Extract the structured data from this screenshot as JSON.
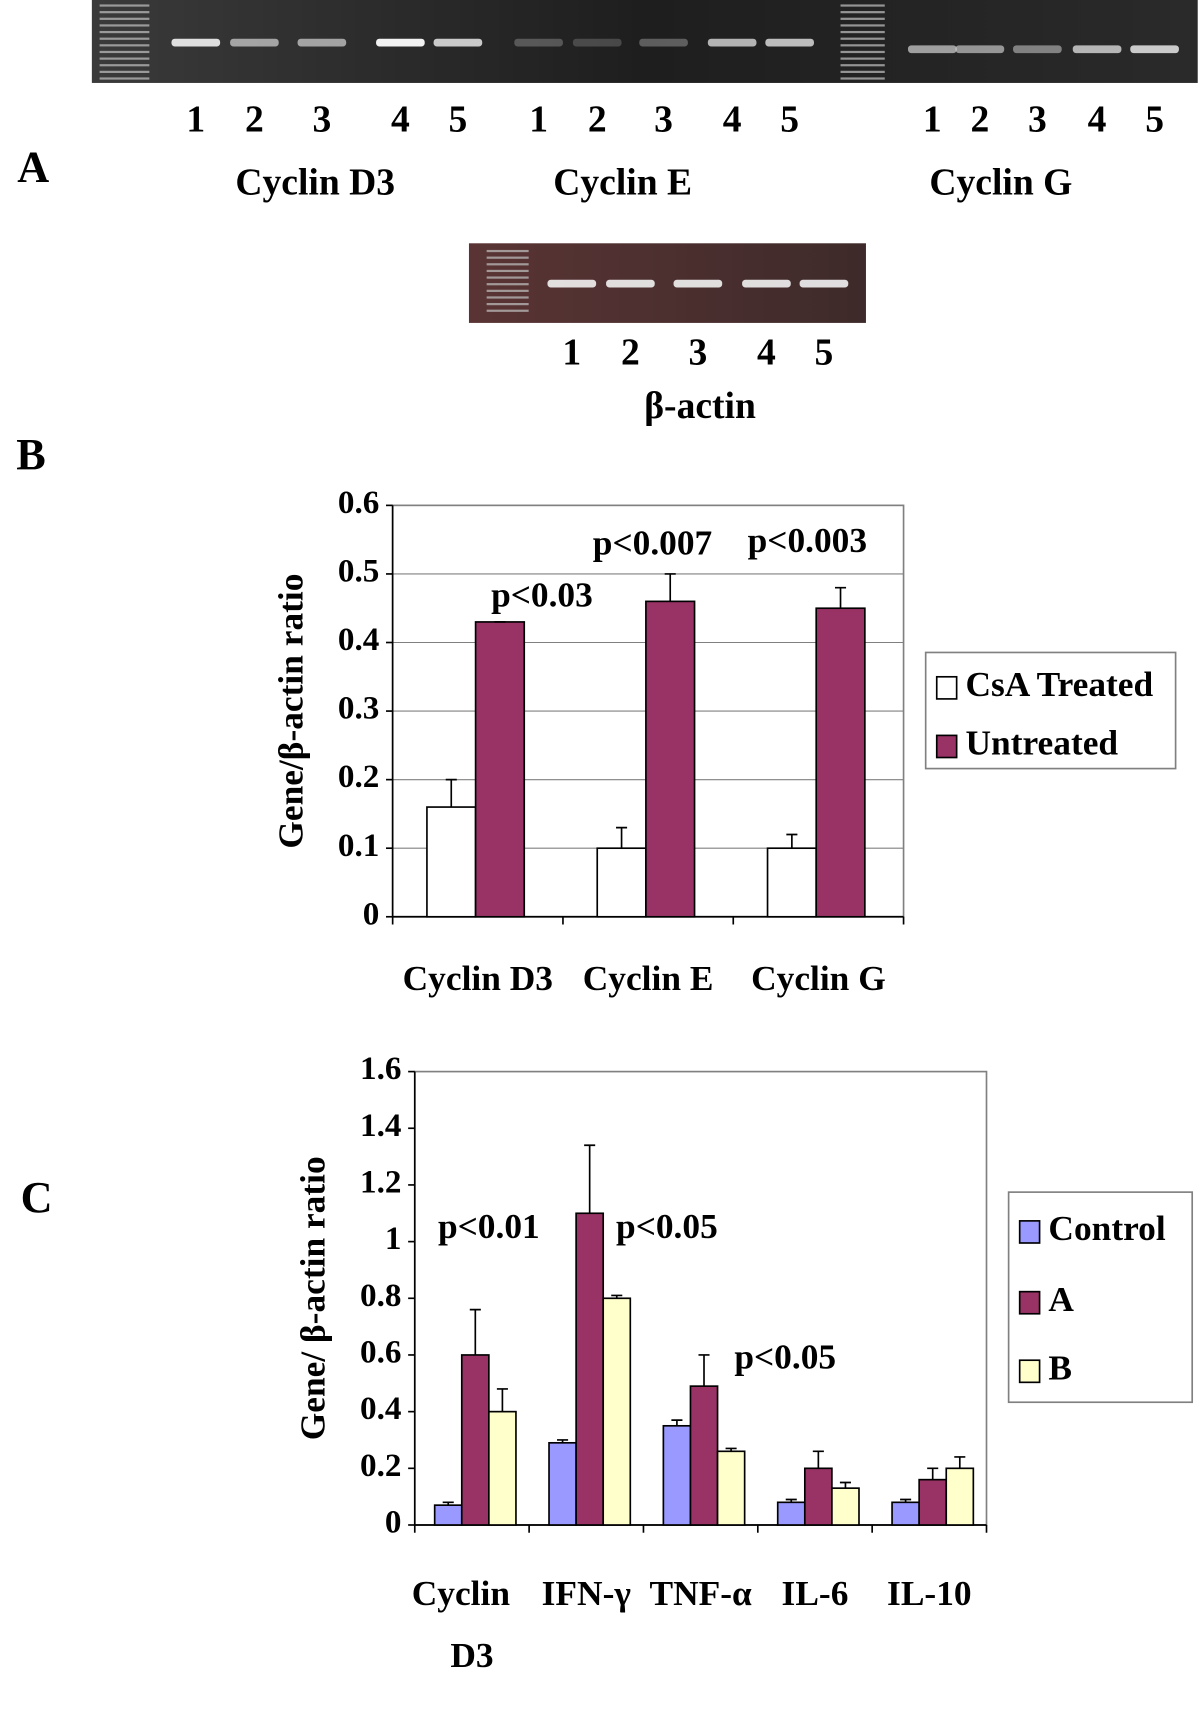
{
  "panels": {
    "letters": [
      "A",
      "B",
      "C"
    ],
    "gels": [
      {
        "label": "Cyclin D3",
        "lanes": [
          "1",
          "2",
          "3",
          "4",
          "5"
        ]
      },
      {
        "label": "Cyclin E",
        "lanes": [
          "1",
          "2",
          "3",
          "4",
          "5"
        ]
      },
      {
        "label": "Cyclin G",
        "lanes": [
          "1",
          "2",
          "3",
          "4",
          "5"
        ]
      },
      {
        "label": "β-actin",
        "lanes": [
          "1",
          "2",
          "3",
          "4",
          "5"
        ]
      }
    ]
  },
  "chart_data": [
    {
      "type": "bar",
      "y_label": "Gene/β-actin ratio",
      "categories": [
        "Cyclin D3",
        "Cyclin E",
        "Cyclin G"
      ],
      "series": [
        {
          "name": "CsA Treated",
          "color": "#ffffff",
          "values": [
            0.16,
            0.1,
            0.1
          ],
          "errors": [
            0.04,
            0.03,
            0.02
          ]
        },
        {
          "name": "Untreated",
          "color": "#993366",
          "values": [
            0.43,
            0.46,
            0.45
          ],
          "errors": [
            0,
            0.04,
            0.03
          ]
        }
      ],
      "annotations": [
        "p<0.03",
        "p<0.007",
        "p<0.003"
      ],
      "ylim": [
        0,
        0.6
      ],
      "yticks": [
        0,
        0.1,
        0.2,
        0.3,
        0.4,
        0.5,
        0.6
      ],
      "grid": true,
      "legend": "right"
    },
    {
      "type": "bar",
      "y_label": "Gene/ β-actin ratio",
      "categories": [
        "Cyclin D3",
        "IFN-γ",
        "TNF-α",
        "IL-6",
        "IL-10"
      ],
      "series": [
        {
          "name": "Control",
          "color": "#9999ff",
          "values": [
            0.07,
            0.29,
            0.35,
            0.08,
            0.08
          ],
          "errors": [
            0.01,
            0.01,
            0.02,
            0.01,
            0.01
          ]
        },
        {
          "name": "A",
          "color": "#993366",
          "values": [
            0.6,
            1.1,
            0.49,
            0.2,
            0.16
          ],
          "errors": [
            0.16,
            0.24,
            0.11,
            0.06,
            0.04
          ]
        },
        {
          "name": "B",
          "color": "#ffffcc",
          "values": [
            0.4,
            0.8,
            0.26,
            0.13,
            0.2
          ],
          "errors": [
            0.08,
            0.01,
            0.01,
            0.02,
            0.04
          ]
        }
      ],
      "annotations": [
        "p<0.01",
        "p<0.05",
        "p<0.05"
      ],
      "ylim": [
        0,
        1.6
      ],
      "yticks": [
        0,
        0.2,
        0.4,
        0.6,
        0.8,
        1,
        1.2,
        1.4,
        1.6
      ],
      "grid": false,
      "legend": "right"
    }
  ]
}
